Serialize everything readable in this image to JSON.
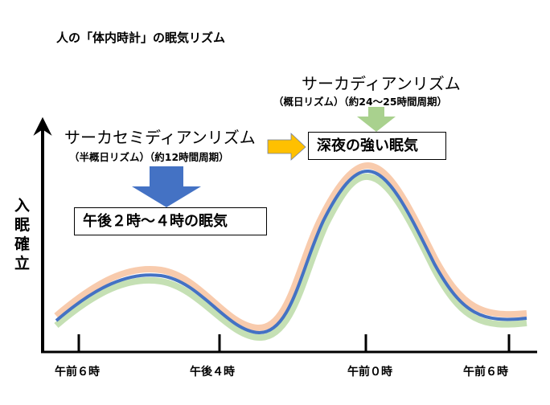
{
  "title": "人の「体内時計」の眠気リズム",
  "circadian": {
    "name": "サーカディアンリズム",
    "sub": "（概日リズム）（約24～25時間周期）"
  },
  "semicircadian": {
    "name": "サーカセミディアンリズム",
    "sub": "（半概日リズム）（約12時間周期）"
  },
  "boxes": {
    "night": "深夜の強い眠気",
    "afternoon": "午後２時～４時の眠気"
  },
  "y_axis_label": "入眠確立",
  "x_ticks": [
    "午前６時",
    "午後４時",
    "午前０時",
    "午前６時"
  ],
  "colors": {
    "blue": "#4472C4",
    "green": "#A9D18E",
    "orange": "#FFC000",
    "curve_orange": "#F8CBAD",
    "curve_green": "#C5E0B4"
  }
}
